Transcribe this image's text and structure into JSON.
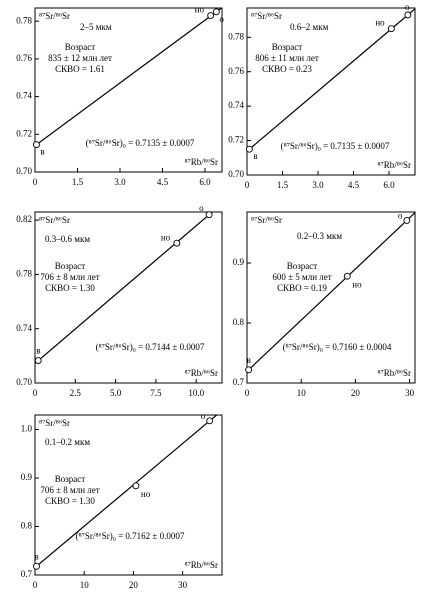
{
  "chart_data": [
    {
      "type": "scatter",
      "y_label": "⁸⁷Sr/⁸⁶Sr",
      "x_label": "⁸⁷Rb/⁸⁶Sr",
      "fraction": "2–5 мкм",
      "annotations": [
        "Возраст",
        "835 ± 12 млн лет",
        "СКВО = 1.61"
      ],
      "intercept_text": "(⁸⁷Sr/⁸⁶Sr)₀ = 0.7135 ± 0.0007",
      "x": [
        0.05,
        6.2,
        6.4
      ],
      "values": [
        0.7145,
        0.783,
        0.785
      ],
      "point_labels": [
        "в",
        "но",
        "о"
      ],
      "color": "#000000",
      "fit_line": true,
      "xlim": [
        0,
        6.6
      ],
      "ylim": [
        0.7,
        0.787
      ],
      "xticks": [
        0,
        1.5,
        {
          "value": 3,
          "label": "3.0"
        },
        4.5,
        {
          "value": 6,
          "label": "6.0"
        }
      ],
      "yticks": [
        {
          "value": 0.7,
          "label": "0.70"
        },
        0.72,
        0.74,
        0.76,
        0.78
      ]
    },
    {
      "type": "scatter",
      "y_label": "⁸⁷Sr/⁸⁶Sr",
      "x_label": "⁸⁷Rb/⁸⁶Sr",
      "fraction": "0.6–2 мкм",
      "annotations": [
        "Возраст",
        "806 ± 11 млн лет",
        "СКВО = 0.23"
      ],
      "intercept_text": "(⁸⁷Sr/⁸⁶Sr)₀ = 0.7135 ± 0.0007",
      "x": [
        0.1,
        6.1,
        6.8
      ],
      "values": [
        0.715,
        0.785,
        0.793
      ],
      "point_labels": [
        "в",
        "но",
        "о"
      ],
      "color": "#000000",
      "fit_line": true,
      "xlim": [
        0,
        7.1
      ],
      "ylim": [
        0.7,
        0.797
      ],
      "xticks": [
        0,
        1.5,
        {
          "value": 3,
          "label": "3.0"
        },
        4.5,
        {
          "value": 6,
          "label": "6.0"
        }
      ],
      "yticks": [
        {
          "value": 0.7,
          "label": "0.70"
        },
        0.72,
        0.74,
        0.76,
        0.78
      ]
    },
    {
      "type": "scatter",
      "y_label": "⁸⁷Sr/⁸⁶Sr",
      "x_label": "⁸⁷Rb/⁸⁶Sr",
      "fraction": "0.3–0.6 мкм",
      "annotations": [
        "Возраст",
        "706 ± 8 млн лет",
        "СКВО = 1.30"
      ],
      "intercept_text": "(⁸⁷Sr/⁸⁶Sr)₀ = 0.7144 ± 0.0007",
      "x": [
        0.2,
        8.8,
        10.8
      ],
      "values": [
        0.7165,
        0.803,
        0.824
      ],
      "point_labels": [
        "в",
        "но",
        "о"
      ],
      "color": "#000000",
      "fit_line": true,
      "xlim": [
        0,
        11.6
      ],
      "ylim": [
        0.7,
        0.826
      ],
      "xticks": [
        0,
        2.5,
        {
          "value": 5,
          "label": "5.0"
        },
        7.5,
        {
          "value": 10,
          "label": "10.0"
        }
      ],
      "yticks": [
        {
          "value": 0.7,
          "label": "0.70"
        },
        0.74,
        0.78,
        0.82
      ]
    },
    {
      "type": "scatter",
      "y_label": "⁸⁷Sr/⁸⁶Sr",
      "x_label": "⁸⁷Rb/⁸⁶Sr",
      "fraction": "0.2–0.3 мкм",
      "annotations": [
        "Возраст",
        "600 ± 5 млн лет",
        "СКВО = 0.19"
      ],
      "intercept_text": "(⁸⁷Sr/⁸⁶Sr)₀ = 0.7160 ± 0.0004",
      "x": [
        0.3,
        18.5,
        29.5
      ],
      "values": [
        0.722,
        0.878,
        0.971
      ],
      "point_labels": [
        "в",
        "но",
        "о"
      ],
      "color": "#000000",
      "fit_line": true,
      "xlim": [
        0,
        31
      ],
      "ylim": [
        0.7,
        0.985
      ],
      "xticks": [
        0,
        10,
        20,
        30
      ],
      "yticks": [
        0.7,
        0.8,
        0.9
      ]
    },
    {
      "type": "scatter",
      "y_label": "⁸⁷Sr/⁸⁶Sr",
      "x_label": "⁸⁷Rb/⁸⁶Sr",
      "fraction": "0.1–0.2 мкм",
      "annotations": [
        "Возраст",
        "706 ± 8 млн лет",
        "СКВО = 1.30"
      ],
      "intercept_text": "(⁸⁷Sr/⁸⁶Sr)₀ = 0.7162 ± 0.0007",
      "x": [
        0.3,
        20.5,
        35.5
      ],
      "values": [
        0.718,
        0.884,
        1.018
      ],
      "point_labels": [
        "в",
        "но",
        "о"
      ],
      "color": "#000000",
      "fit_line": true,
      "xlim": [
        0,
        38
      ],
      "ylim": [
        0.7,
        1.03
      ],
      "xticks": [
        0,
        10,
        20,
        30
      ],
      "yticks": [
        0.7,
        0.8,
        0.9,
        {
          "value": 1,
          "label": "1.0"
        }
      ]
    }
  ]
}
